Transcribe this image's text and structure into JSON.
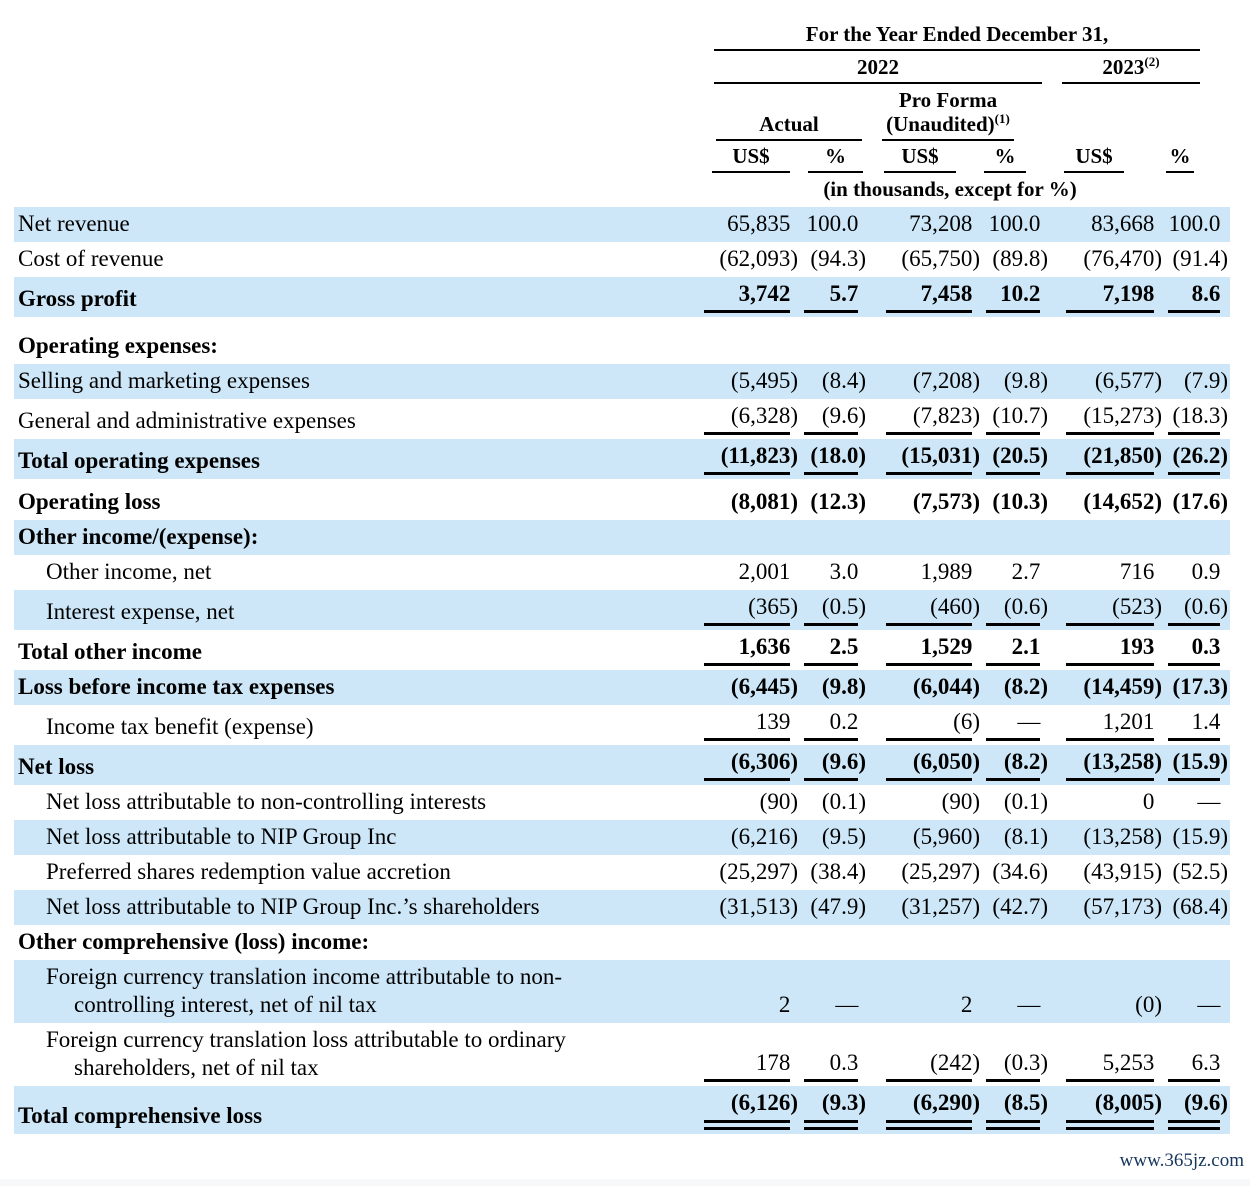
{
  "header": {
    "year_ended": "For the Year Ended December 31,",
    "col_2022": "2022",
    "col_2023": "2023",
    "col_2023_sup": "(2)",
    "actual": "Actual",
    "proforma_line1": "Pro Forma",
    "proforma_line2": "(Unaudited)",
    "proforma_sup": "(1)",
    "usd": "US$",
    "pct": "%",
    "units_note": "(in thousands, except for %)"
  },
  "table": {
    "columns": [
      "US$",
      "%",
      "US$",
      "%",
      "US$",
      "%"
    ],
    "rows": [
      {
        "label": "Net revenue",
        "indent": 0,
        "bold": false,
        "shade": true,
        "values": [
          "65,835",
          "100.0",
          "73,208",
          "100.0",
          "83,668",
          "100.0"
        ]
      },
      {
        "label": "Cost of revenue",
        "indent": 0,
        "bold": false,
        "shade": false,
        "values": [
          "(62,093)",
          "(94.3)",
          "(65,750)",
          "(89.8)",
          "(76,470)",
          "(91.4)"
        ]
      },
      {
        "label": "Gross profit",
        "indent": 0,
        "bold": true,
        "shade": true,
        "rule": "single",
        "values": [
          "3,742",
          "5.7",
          "7,458",
          "10.2",
          "7,198",
          "8.6"
        ]
      },
      {
        "spacer": true,
        "h": 12
      },
      {
        "label": "Operating expenses:",
        "indent": 0,
        "bold": true,
        "shade": false,
        "values": []
      },
      {
        "label": "Selling and marketing expenses",
        "indent": 0,
        "bold": false,
        "shade": true,
        "values": [
          "(5,495)",
          "(8.4)",
          "(7,208)",
          "(9.8)",
          "(6,577)",
          "(7.9)"
        ]
      },
      {
        "label": "General and administrative expenses",
        "indent": 0,
        "bold": false,
        "shade": false,
        "rule": "single",
        "values": [
          "(6,328)",
          "(9.6)",
          "(7,823)",
          "(10.7)",
          "(15,273)",
          "(18.3)"
        ]
      },
      {
        "label": "Total operating expenses",
        "indent": 0,
        "bold": true,
        "shade": true,
        "rule": "single",
        "values": [
          "(11,823)",
          "(18.0)",
          "(15,031)",
          "(20.5)",
          "(21,850)",
          "(26.2)"
        ]
      },
      {
        "spacer": true,
        "h": 6
      },
      {
        "label": "Operating loss",
        "indent": 0,
        "bold": true,
        "shade": false,
        "values": [
          "(8,081)",
          "(12.3)",
          "(7,573)",
          "(10.3)",
          "(14,652)",
          "(17.6)"
        ]
      },
      {
        "label": "Other income/(expense):",
        "indent": 0,
        "bold": true,
        "shade": true,
        "values": []
      },
      {
        "label": "Other income, net",
        "indent": 1,
        "bold": false,
        "shade": false,
        "values": [
          "2,001",
          "3.0",
          "1,989",
          "2.7",
          "716",
          "0.9"
        ]
      },
      {
        "label": "Interest expense, net",
        "indent": 1,
        "bold": false,
        "shade": true,
        "rule": "single",
        "values": [
          "(365)",
          "(0.5)",
          "(460)",
          "(0.6)",
          "(523)",
          "(0.6)"
        ]
      },
      {
        "label": "Total other income",
        "indent": 0,
        "bold": true,
        "shade": false,
        "rule": "single",
        "values": [
          "1,636",
          "2.5",
          "1,529",
          "2.1",
          "193",
          "0.3"
        ]
      },
      {
        "label": "Loss before income tax expenses",
        "indent": 0,
        "bold": true,
        "shade": true,
        "values": [
          "(6,445)",
          "(9.8)",
          "(6,044)",
          "(8.2)",
          "(14,459)",
          "(17.3)"
        ]
      },
      {
        "label": "Income tax benefit (expense)",
        "indent": 1,
        "bold": false,
        "shade": false,
        "rule": "single",
        "values": [
          "139",
          "0.2",
          "(6)",
          "—",
          "1,201",
          "1.4"
        ]
      },
      {
        "label": "Net loss",
        "indent": 0,
        "bold": true,
        "shade": true,
        "rule": "single",
        "values": [
          "(6,306)",
          "(9.6)",
          "(6,050)",
          "(8.2)",
          "(13,258)",
          "(15.9)"
        ]
      },
      {
        "label": "Net loss attributable to non-controlling interests",
        "indent": 1,
        "bold": false,
        "shade": false,
        "values": [
          "(90)",
          "(0.1)",
          "(90)",
          "(0.1)",
          "0",
          "—"
        ]
      },
      {
        "label": "Net loss attributable to NIP Group Inc",
        "indent": 1,
        "bold": false,
        "shade": true,
        "values": [
          "(6,216)",
          "(9.5)",
          "(5,960)",
          "(8.1)",
          "(13,258)",
          "(15.9)"
        ]
      },
      {
        "label": "Preferred shares redemption value accretion",
        "indent": 1,
        "bold": false,
        "shade": false,
        "values": [
          "(25,297)",
          "(38.4)",
          "(25,297)",
          "(34.6)",
          "(43,915)",
          "(52.5)"
        ]
      },
      {
        "label": "Net loss attributable to NIP Group Inc.’s shareholders",
        "indent": 1,
        "bold": false,
        "shade": true,
        "values": [
          "(31,513)",
          "(47.9)",
          "(31,257)",
          "(42.7)",
          "(57,173)",
          "(68.4)"
        ]
      },
      {
        "label": "Other comprehensive (loss) income:",
        "indent": 0,
        "bold": true,
        "shade": false,
        "values": []
      },
      {
        "label": "Foreign currency translation income attributable to non-",
        "label2": "controlling interest, net of nil tax",
        "indent": 1,
        "bold": false,
        "shade": true,
        "values": [
          "2",
          "—",
          "2",
          "—",
          "(0)",
          "—"
        ]
      },
      {
        "label": "Foreign currency translation loss attributable to ordinary",
        "label2": "shareholders, net of nil tax",
        "indent": 1,
        "bold": false,
        "shade": false,
        "rule": "single",
        "values": [
          "178",
          "0.3",
          "(242)",
          "(0.3)",
          "5,253",
          "6.3"
        ]
      },
      {
        "label": "Total comprehensive loss",
        "indent": 0,
        "bold": true,
        "shade": true,
        "rule": "double",
        "values": [
          "(6,126)",
          "(9.3)",
          "(6,290)",
          "(8.5)",
          "(8,005)",
          "(9.6)"
        ]
      }
    ]
  },
  "footer": {
    "watermark": "www.365jz.com"
  },
  "colors": {
    "stripe": "#cde7f8",
    "rule": "#000000",
    "watermark_text": "#16365c"
  }
}
